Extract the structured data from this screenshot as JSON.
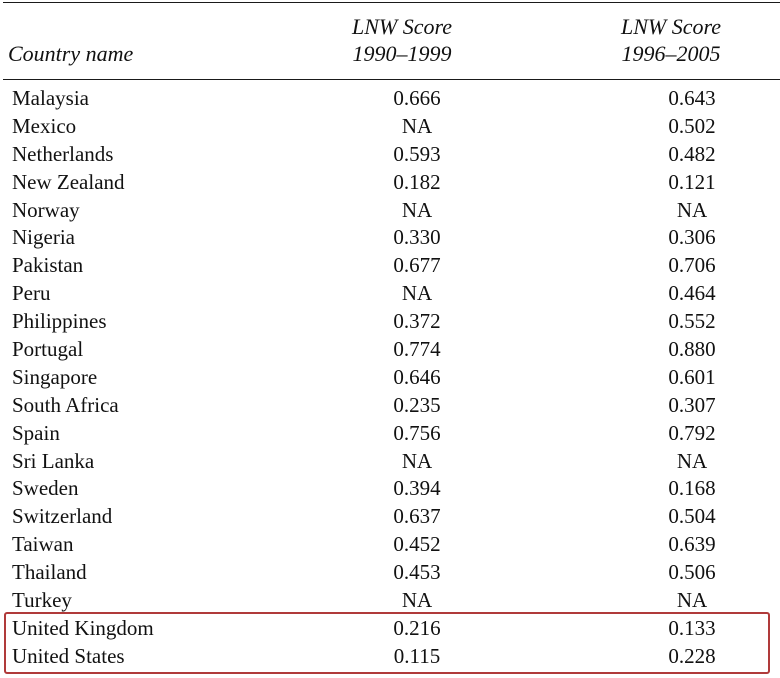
{
  "table": {
    "headers": {
      "country": "Country name",
      "col1_line1": "LNW Score",
      "col1_line2": "1990–1999",
      "col2_line1": "LNW Score",
      "col2_line2": "1996–2005"
    },
    "rows": [
      {
        "country": "Malaysia",
        "v1": "0.666",
        "v2": "0.643"
      },
      {
        "country": "Mexico",
        "v1": "NA",
        "v2": "0.502"
      },
      {
        "country": "Netherlands",
        "v1": "0.593",
        "v2": "0.482"
      },
      {
        "country": "New Zealand",
        "v1": "0.182",
        "v2": "0.121"
      },
      {
        "country": "Norway",
        "v1": "NA",
        "v2": "NA"
      },
      {
        "country": "Nigeria",
        "v1": "0.330",
        "v2": "0.306"
      },
      {
        "country": "Pakistan",
        "v1": "0.677",
        "v2": "0.706"
      },
      {
        "country": "Peru",
        "v1": "NA",
        "v2": "0.464"
      },
      {
        "country": "Philippines",
        "v1": "0.372",
        "v2": "0.552"
      },
      {
        "country": "Portugal",
        "v1": "0.774",
        "v2": "0.880"
      },
      {
        "country": "Singapore",
        "v1": "0.646",
        "v2": "0.601"
      },
      {
        "country": "South Africa",
        "v1": "0.235",
        "v2": "0.307"
      },
      {
        "country": "Spain",
        "v1": "0.756",
        "v2": "0.792"
      },
      {
        "country": "Sri Lanka",
        "v1": "NA",
        "v2": "NA"
      },
      {
        "country": "Sweden",
        "v1": "0.394",
        "v2": "0.168"
      },
      {
        "country": "Switzerland",
        "v1": "0.637",
        "v2": "0.504"
      },
      {
        "country": "Taiwan",
        "v1": "0.452",
        "v2": "0.639"
      },
      {
        "country": "Thailand",
        "v1": "0.453",
        "v2": "0.506"
      },
      {
        "country": "Turkey",
        "v1": "NA",
        "v2": "NA"
      },
      {
        "country": "United Kingdom",
        "v1": "0.216",
        "v2": "0.133"
      },
      {
        "country": "United States",
        "v1": "0.115",
        "v2": "0.228"
      }
    ]
  },
  "highlight": {
    "color": "#b03a3a",
    "rows": [
      "United Kingdom",
      "United States"
    ]
  }
}
